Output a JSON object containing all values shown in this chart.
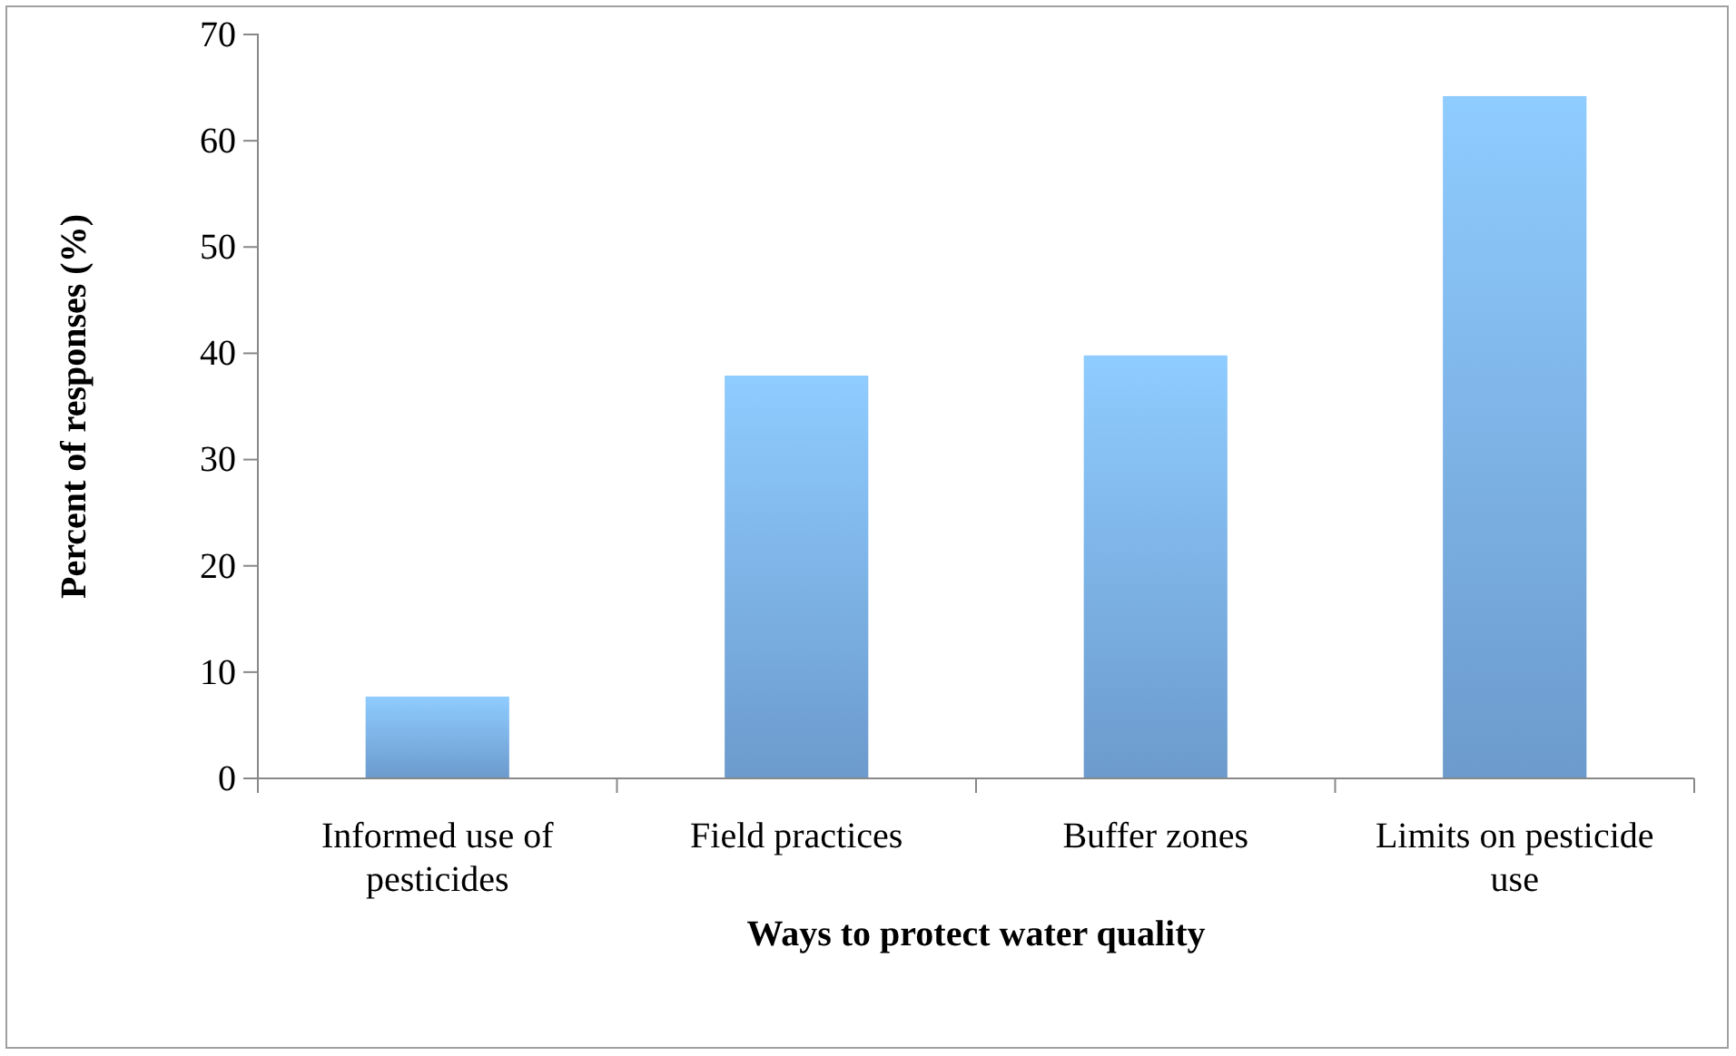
{
  "chart_data": {
    "type": "bar",
    "xlabel": "Ways to protect water quality",
    "ylabel": "Percent of responses (%)",
    "categories": [
      "Informed use of pesticides",
      "Field practices",
      "Buffer zones",
      "Limits on pesticide use"
    ],
    "values": [
      7.7,
      37.9,
      39.8,
      64.2
    ],
    "color": "#7aaee8",
    "ylim": [
      0,
      70
    ],
    "yticks": [
      0,
      10,
      20,
      30,
      40,
      50,
      60,
      70
    ]
  }
}
